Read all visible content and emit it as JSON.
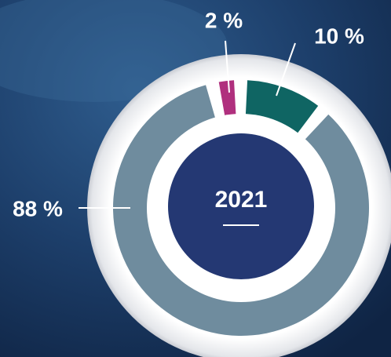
{
  "chart_data": {
    "type": "pie",
    "donut": true,
    "center_label": "2021",
    "values": [
      2,
      10,
      88
    ],
    "value_labels": [
      "2 %",
      "10 %",
      "88 %"
    ],
    "colors": [
      "#b0307e",
      "#0f6563",
      "#6f8c9e"
    ]
  }
}
